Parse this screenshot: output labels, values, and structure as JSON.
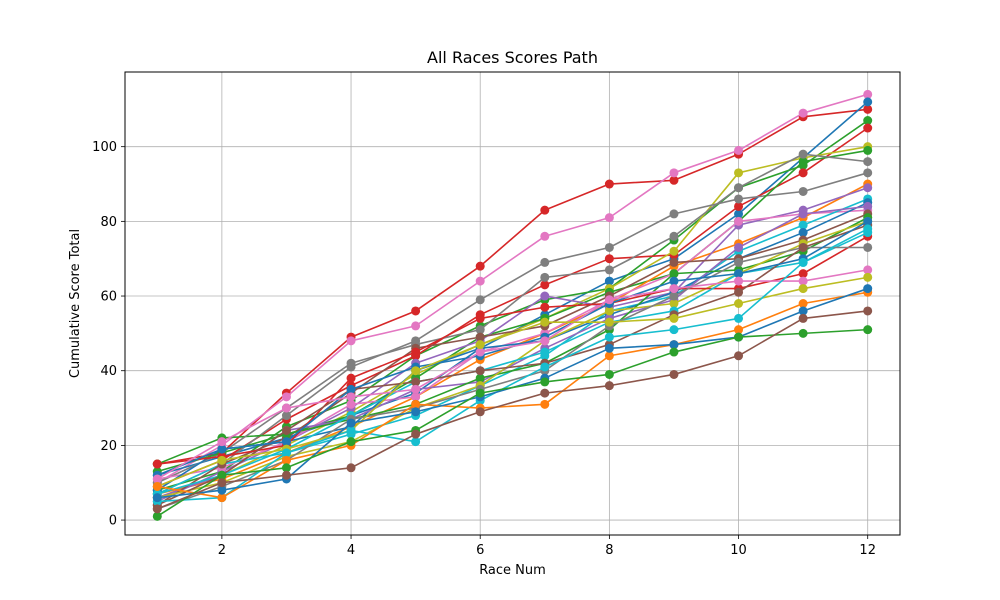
{
  "chart_data": {
    "type": "line",
    "title": "All Races Scores Path",
    "xlabel": "Race Num",
    "ylabel": "Cumulative Score Total",
    "xlim": [
      0.5,
      12.5
    ],
    "ylim": [
      -4,
      120
    ],
    "xticks": [
      2,
      4,
      6,
      8,
      10,
      12
    ],
    "yticks": [
      0,
      20,
      40,
      60,
      80,
      100
    ],
    "grid": true,
    "markers": true,
    "x": [
      1,
      2,
      3,
      4,
      5,
      6,
      7,
      8,
      9,
      10,
      11,
      12
    ],
    "series": [
      {
        "color": "#d62728",
        "values": [
          15,
          18,
          34,
          49,
          56,
          68,
          83,
          90,
          91,
          98,
          108,
          110
        ]
      },
      {
        "color": "#e377c2",
        "values": [
          10,
          20,
          33,
          48,
          52,
          64,
          76,
          81,
          93,
          99,
          109,
          114
        ]
      },
      {
        "color": "#1f77b4",
        "values": [
          12,
          17,
          22,
          28,
          34,
          46,
          55,
          64,
          70,
          82,
          97,
          112
        ]
      },
      {
        "color": "#2ca02c",
        "values": [
          8,
          13,
          25,
          32,
          44,
          52,
          59,
          62,
          75,
          89,
          95,
          107
        ]
      },
      {
        "color": "#d62728",
        "values": [
          9,
          16,
          27,
          36,
          44,
          55,
          63,
          70,
          71,
          84,
          93,
          105
        ]
      },
      {
        "color": "#bcbd22",
        "values": [
          6,
          12,
          20,
          29,
          39,
          47,
          54,
          62,
          72,
          93,
          97,
          100
        ]
      },
      {
        "color": "#7f7f7f",
        "values": [
          7,
          15,
          28,
          41,
          48,
          59,
          69,
          73,
          82,
          86,
          88,
          93
        ]
      },
      {
        "color": "#2ca02c",
        "values": [
          15,
          22,
          23,
          28,
          38,
          49,
          54,
          61,
          66,
          80,
          96,
          99
        ]
      },
      {
        "color": "#7f7f7f",
        "values": [
          10,
          18,
          30,
          42,
          47,
          51,
          65,
          67,
          76,
          89,
          98,
          96
        ]
      },
      {
        "color": "#ff7f0e",
        "values": [
          7,
          11,
          18,
          25,
          33,
          43,
          50,
          58,
          68,
          74,
          81,
          90
        ]
      },
      {
        "color": "#9467bd",
        "values": [
          5,
          13,
          21,
          30,
          42,
          48,
          60,
          57,
          61,
          79,
          83,
          89
        ]
      },
      {
        "color": "#e377c2",
        "values": [
          11,
          14,
          21,
          31,
          33,
          45,
          50,
          59,
          66,
          80,
          82,
          83
        ]
      },
      {
        "color": "#17becf",
        "values": [
          7,
          15,
          18,
          23,
          28,
          36,
          44,
          56,
          60,
          72,
          79,
          86
        ]
      },
      {
        "color": "#1f77b4",
        "values": [
          8,
          19,
          21,
          25,
          40,
          46,
          48,
          55,
          61,
          70,
          77,
          85
        ]
      },
      {
        "color": "#9467bd",
        "values": [
          6,
          12,
          24,
          27,
          35,
          37,
          46,
          54,
          59,
          73,
          82,
          84
        ]
      },
      {
        "color": "#8c564b",
        "values": [
          4,
          15,
          22,
          34,
          46,
          49,
          52,
          60,
          69,
          70,
          75,
          82
        ]
      },
      {
        "color": "#2ca02c",
        "values": [
          13,
          18,
          23,
          27,
          31,
          38,
          42,
          51,
          66,
          67,
          72,
          81
        ]
      },
      {
        "color": "#bcbd22",
        "values": [
          6,
          10,
          17,
          21,
          30,
          36,
          48,
          56,
          58,
          66,
          74,
          80
        ]
      },
      {
        "color": "#d62728",
        "values": [
          15,
          17,
          20,
          38,
          45,
          54,
          57,
          58,
          62,
          62,
          66,
          76
        ]
      },
      {
        "color": "#17becf",
        "values": [
          7,
          12,
          19,
          28,
          37,
          40,
          45,
          53,
          56,
          66,
          69,
          77
        ]
      },
      {
        "color": "#7f7f7f",
        "values": [
          3,
          9,
          16,
          27,
          30,
          35,
          40,
          52,
          60,
          69,
          73,
          73
        ]
      },
      {
        "color": "#8c564b",
        "values": [
          4,
          12,
          24,
          35,
          37,
          40,
          42,
          47,
          55,
          61,
          73,
          79
        ]
      },
      {
        "color": "#1f77b4",
        "values": [
          12,
          19,
          21,
          35,
          41,
          44,
          49,
          58,
          64,
          66,
          70,
          80
        ]
      },
      {
        "color": "#e377c2",
        "values": [
          11,
          21,
          30,
          33,
          35,
          45,
          48,
          59,
          62,
          64,
          64,
          67
        ]
      },
      {
        "color": "#bcbd22",
        "values": [
          9,
          16,
          19,
          24,
          40,
          47,
          53,
          53,
          54,
          58,
          62,
          65
        ]
      },
      {
        "color": "#17becf",
        "values": [
          5,
          6,
          18,
          24,
          21,
          32,
          41,
          49,
          51,
          54,
          69,
          78
        ]
      },
      {
        "color": "#ff7f0e",
        "values": [
          9,
          6,
          16,
          20,
          31,
          30,
          31,
          44,
          47,
          51,
          58,
          61
        ]
      },
      {
        "color": "#1f77b4",
        "values": [
          6,
          8,
          11,
          26,
          29,
          33,
          38,
          46,
          47,
          49,
          56,
          62
        ]
      },
      {
        "color": "#2ca02c",
        "values": [
          1,
          12,
          14,
          21,
          24,
          34,
          37,
          39,
          45,
          49,
          50,
          51
        ]
      },
      {
        "color": "#8c564b",
        "values": [
          3,
          10,
          12,
          14,
          23,
          29,
          34,
          36,
          39,
          44,
          54,
          56
        ]
      }
    ]
  }
}
